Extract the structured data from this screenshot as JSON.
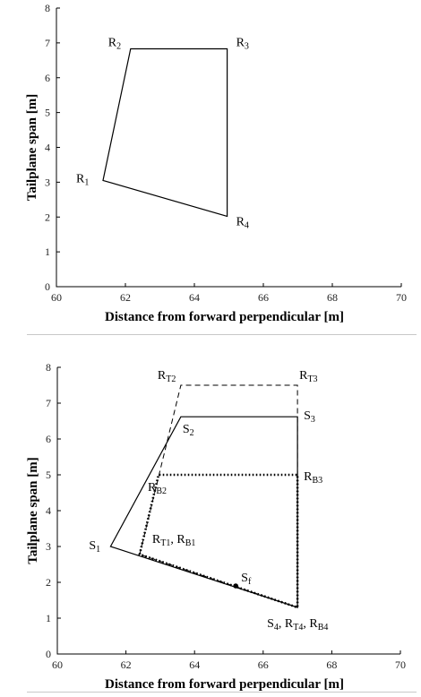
{
  "chart_data": [
    {
      "type": "line",
      "xlabel": "Distance from forward perpendicular [m]",
      "ylabel": "Tailplane span [m]",
      "xlim": [
        60,
        70
      ],
      "ylim": [
        0,
        8
      ],
      "xticks": [
        "60",
        "62",
        "64",
        "66",
        "68",
        "70"
      ],
      "yticks": [
        "0",
        "1",
        "2",
        "3",
        "4",
        "5",
        "6",
        "7",
        "8"
      ],
      "series": [
        {
          "style": "solid",
          "closed": true,
          "points": [
            [
              61.35,
              3.05
            ],
            [
              62.15,
              6.83
            ],
            [
              64.95,
              6.83
            ],
            [
              64.95,
              2.02
            ]
          ]
        }
      ],
      "labels": [
        {
          "base": "R",
          "sub": "1",
          "x": 61.35,
          "y": 3.05
        },
        {
          "base": "R",
          "sub": "2",
          "x": 62.15,
          "y": 6.83
        },
        {
          "base": "R",
          "sub": "3",
          "x": 64.95,
          "y": 6.83
        },
        {
          "base": "R",
          "sub": "4",
          "x": 64.95,
          "y": 2.02
        }
      ]
    },
    {
      "type": "line",
      "xlabel": "Distance from forward perpendicular [m]",
      "ylabel": "Tailplane span [m]",
      "xlim": [
        60,
        70
      ],
      "ylim": [
        0,
        8
      ],
      "xticks": [
        "60",
        "62",
        "64",
        "66",
        "68",
        "70"
      ],
      "yticks": [
        "0",
        "1",
        "2",
        "3",
        "4",
        "5",
        "6",
        "7",
        "8"
      ],
      "series": [
        {
          "style": "solid",
          "closed": true,
          "points": [
            [
              61.55,
              3.0
            ],
            [
              63.6,
              6.62
            ],
            [
              67.0,
              6.62
            ],
            [
              67.0,
              1.3
            ]
          ]
        },
        {
          "style": "dashed",
          "closed": true,
          "points": [
            [
              62.4,
              2.78
            ],
            [
              63.6,
              7.5
            ],
            [
              67.0,
              7.5
            ],
            [
              67.0,
              1.3
            ]
          ]
        },
        {
          "style": "dotted",
          "closed": true,
          "points": [
            [
              62.4,
              2.78
            ],
            [
              62.95,
              5.0
            ],
            [
              67.0,
              5.0
            ],
            [
              67.0,
              1.3
            ]
          ]
        }
      ],
      "markers": [
        {
          "x": 65.2,
          "y": 1.9
        }
      ],
      "labels": [
        {
          "base": "S",
          "sub": "1",
          "x": 61.55,
          "y": 3.0
        },
        {
          "base": "S",
          "sub": "2",
          "x": 63.6,
          "y": 6.62
        },
        {
          "base": "S",
          "sub": "3",
          "x": 67.0,
          "y": 6.62
        },
        {
          "base": "S",
          "sub": "f",
          "x": 65.2,
          "y": 1.9
        },
        {
          "base": "R",
          "sub": "T2",
          "x": 63.6,
          "y": 7.5
        },
        {
          "base": "R",
          "sub": "T3",
          "x": 67.0,
          "y": 7.5
        },
        {
          "base": "R",
          "sub": "B2",
          "x": 62.95,
          "y": 5.0
        },
        {
          "base": "R",
          "sub": "B3",
          "x": 67.0,
          "y": 5.0
        },
        {
          "parts": [
            [
              "R",
              "T1"
            ],
            [
              "R",
              "B1"
            ]
          ],
          "x": 62.4,
          "y": 2.78
        },
        {
          "parts": [
            [
              "S",
              "4"
            ],
            [
              "R",
              "T4"
            ],
            [
              "R",
              "B4"
            ]
          ],
          "x": 67.0,
          "y": 1.3
        }
      ]
    }
  ]
}
